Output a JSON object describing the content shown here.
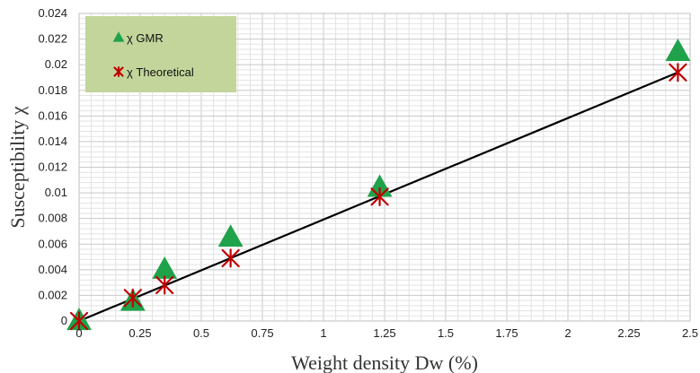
{
  "chart_data": {
    "type": "scatter",
    "xlabel": "Weight density Dw (%)",
    "ylabel": "Susceptibility χ",
    "xlim": [
      0,
      2.5
    ],
    "ylim": [
      0,
      0.024
    ],
    "x_ticks": [
      "0",
      "0.25",
      "0.5",
      "0.75",
      "1",
      "1.25",
      "1.5",
      "1.75",
      "2",
      "2.25",
      "2.5"
    ],
    "y_ticks": [
      "0",
      "0.002",
      "0.004",
      "0.006",
      "0.008",
      "0.01",
      "0.012",
      "0.014",
      "0.016",
      "0.018",
      "0.02",
      "0.022",
      "0.024"
    ],
    "grid": true,
    "legend_position": "top-left",
    "legend_background": "#c3d59b",
    "series": [
      {
        "name": "χ GMR",
        "marker": "triangle",
        "color": "#1fa24a",
        "x": [
          0,
          0.22,
          0.35,
          0.62,
          1.23,
          2.45
        ],
        "y": [
          0,
          0.0015,
          0.004,
          0.0065,
          0.0104,
          0.021
        ]
      },
      {
        "name": "χ Theoretical",
        "marker": "star",
        "color": "#c00000",
        "x": [
          0,
          0.22,
          0.35,
          0.62,
          1.23,
          2.45
        ],
        "y": [
          0,
          0.0018,
          0.0028,
          0.0049,
          0.0097,
          0.0194
        ]
      }
    ],
    "trendline": {
      "color": "#000000",
      "x": [
        0,
        2.45
      ],
      "y": [
        0,
        0.0194
      ]
    }
  }
}
